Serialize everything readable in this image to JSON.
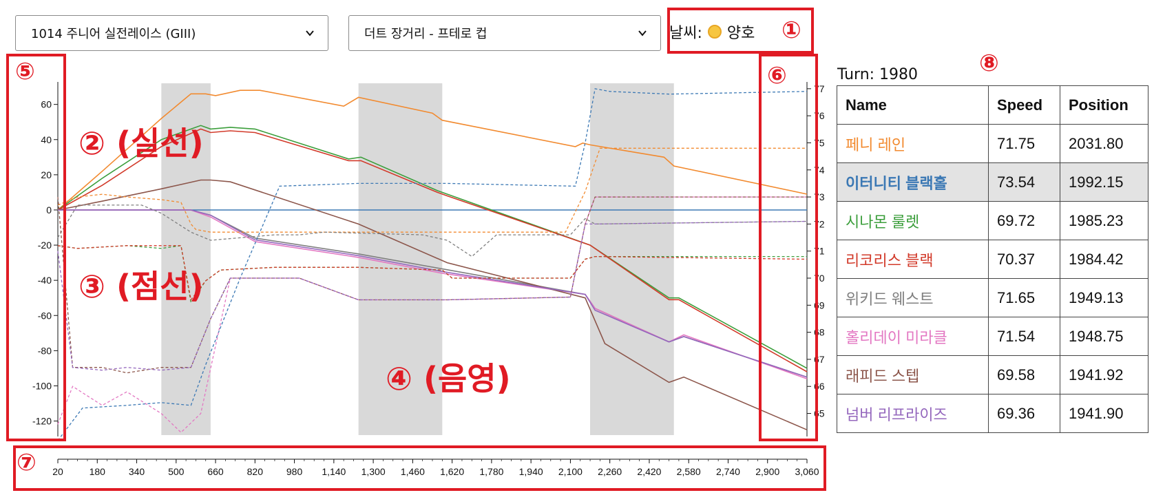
{
  "controls": {
    "race_select": "1014 주니어 실전레이스 (GIII)",
    "course_select": "더트 장거리 - 프테로 컵",
    "weather_label": "날씨:",
    "weather_value": "양호"
  },
  "annotations": {
    "n1": "①",
    "n2": "② (실선)",
    "n3": "③ (점선)",
    "n4": "④ (음영)",
    "n5": "⑤",
    "n6": "⑥",
    "n7": "⑦",
    "n8": "⑧"
  },
  "turn_label": "Turn: 1980",
  "table": {
    "headers": [
      "Name",
      "Speed",
      "Position"
    ],
    "rows": [
      {
        "name": "페니 레인",
        "speed": "71.75",
        "position": "2031.80",
        "color": "#f28a2f"
      },
      {
        "name": "이터니티 블랙홀",
        "speed": "73.54",
        "position": "1992.15",
        "color": "#3b78b4"
      },
      {
        "name": "시나몬 룰렛",
        "speed": "69.72",
        "position": "1985.23",
        "color": "#3b9e3b"
      },
      {
        "name": "리코리스 블랙",
        "speed": "70.37",
        "position": "1984.42",
        "color": "#d23a2a"
      },
      {
        "name": "위키드 웨스트",
        "speed": "71.65",
        "position": "1949.13",
        "color": "#7f7f7f"
      },
      {
        "name": "홀리데이 미라클",
        "speed": "71.54",
        "position": "1948.75",
        "color": "#e377c2"
      },
      {
        "name": "래피드 스텝",
        "speed": "69.58",
        "position": "1941.92",
        "color": "#8c564b"
      },
      {
        "name": "넘버 리프라이즈",
        "speed": "69.36",
        "position": "1941.90",
        "color": "#9467bd"
      }
    ]
  },
  "chart_data": {
    "type": "line",
    "x_ticks": [
      "20",
      "180",
      "340",
      "500",
      "660",
      "820",
      "980",
      "1,140",
      "1,300",
      "1,460",
      "1,620",
      "1,780",
      "1,940",
      "2,100",
      "2,260",
      "2,420",
      "2,580",
      "2,740",
      "2,900",
      "3,060"
    ],
    "xlim": [
      20,
      3060
    ],
    "ylim_left": [
      -128,
      72
    ],
    "y_ticks_left": [
      60,
      40,
      20,
      0,
      -20,
      -40,
      -60,
      -80,
      -100,
      -120
    ],
    "ylim_right": [
      64.2,
      77.2
    ],
    "y_ticks_right": [
      77,
      76,
      75,
      74,
      73,
      72,
      71,
      70,
      69,
      68,
      67,
      66,
      65
    ],
    "shaded_ranges": [
      [
        440,
        640
      ],
      [
        1240,
        1580
      ],
      [
        2180,
        2520
      ]
    ],
    "grid": false,
    "series_solid": [
      {
        "name": "페니 레인",
        "color": "#f28a2f",
        "x": [
          20,
          200,
          440,
          560,
          620,
          660,
          760,
          840,
          1180,
          1240,
          1540,
          1580,
          2120,
          2150,
          2180,
          2480,
          2520,
          3060
        ],
        "y": [
          0,
          22,
          52,
          66,
          66,
          65,
          68,
          68,
          59,
          64,
          55,
          51,
          36,
          38,
          37,
          30,
          25,
          9
        ]
      },
      {
        "name": "이터니티 블랙홀",
        "color": "#3b78b4",
        "x": [
          20,
          3060
        ],
        "y": [
          0,
          0
        ]
      },
      {
        "name": "시나몬 룰렛",
        "color": "#3b9e3b",
        "x": [
          20,
          200,
          440,
          600,
          640,
          720,
          820,
          1200,
          1250,
          1560,
          1600,
          2180,
          2500,
          2540,
          3060
        ],
        "y": [
          0,
          18,
          40,
          48,
          46,
          47,
          46,
          29,
          30,
          11,
          9,
          -20,
          -50,
          -50,
          -90
        ]
      },
      {
        "name": "리코리스 블랙",
        "color": "#d23a2a",
        "x": [
          20,
          200,
          440,
          600,
          640,
          720,
          820,
          1200,
          1250,
          1560,
          1600,
          2180,
          2500,
          2540,
          3060
        ],
        "y": [
          0,
          14,
          36,
          46,
          44,
          45,
          44,
          28,
          28,
          10,
          8,
          -20,
          -51,
          -51,
          -92
        ]
      },
      {
        "name": "위키드 웨스트",
        "color": "#7f7f7f",
        "x": [
          20,
          440,
          560,
          640,
          820,
          1240,
          1600,
          2160,
          2200,
          2500,
          2560,
          3060
        ],
        "y": [
          0,
          0,
          0,
          -3,
          -16,
          -25,
          -34,
          -48,
          -56,
          -75,
          -72,
          -95
        ]
      },
      {
        "name": "홀리데이 미라클",
        "color": "#e377c2",
        "x": [
          20,
          440,
          560,
          640,
          820,
          1240,
          1580,
          2160,
          2200,
          2500,
          2560,
          3060
        ],
        "y": [
          0,
          0,
          0,
          -4,
          -18,
          -27,
          -36,
          -48,
          -56,
          -75,
          -71,
          -96
        ]
      },
      {
        "name": "래피드 스텝",
        "color": "#8c564b",
        "x": [
          20,
          200,
          440,
          600,
          640,
          720,
          1240,
          1600,
          2160,
          2240,
          2500,
          2560,
          3060
        ],
        "y": [
          0,
          5,
          12,
          17,
          17,
          16,
          -8,
          -30,
          -50,
          -76,
          -98,
          -95,
          -125
        ]
      },
      {
        "name": "넘버 리프라이즈",
        "color": "#9467bd",
        "x": [
          20,
          440,
          560,
          640,
          820,
          1240,
          1580,
          2160,
          2200,
          2500,
          2560,
          3060
        ],
        "y": [
          0,
          0,
          0,
          -3,
          -17,
          -26,
          -35,
          -48,
          -57,
          -75,
          -72,
          -95
        ]
      }
    ],
    "series_dotted": [
      {
        "name": "페니 레인",
        "color": "#f28a2f",
        "x": [
          20,
          100,
          200,
          300,
          440,
          520,
          560,
          580,
          640,
          900,
          1240,
          1600,
          2080,
          2160,
          2220,
          2500,
          3060
        ],
        "y": [
          72.7,
          73.0,
          73.1,
          73.0,
          72.9,
          72.8,
          72.0,
          71.8,
          71.7,
          71.7,
          71.7,
          71.7,
          71.7,
          73.2,
          74.8,
          74.8,
          74.8
        ]
      },
      {
        "name": "이터니티 블랙홀",
        "color": "#3b78b4",
        "x": [
          20,
          120,
          300,
          440,
          560,
          620,
          760,
          920,
          1240,
          1600,
          2120,
          2160,
          2200,
          2260,
          2500,
          3060
        ],
        "y": [
          64.0,
          65.2,
          65.3,
          65.4,
          65.3,
          66.8,
          70.0,
          73.4,
          73.5,
          73.5,
          73.4,
          75.0,
          77.0,
          76.9,
          76.8,
          76.9
        ]
      },
      {
        "name": "시나몬 룰렛",
        "color": "#3b9e3b",
        "x": [
          20,
          100,
          300,
          440,
          520,
          560,
          620,
          680,
          900,
          1240,
          1580,
          1620,
          2100,
          2160,
          2200,
          3060
        ],
        "y": [
          71.2,
          71.1,
          71.2,
          71.1,
          71.2,
          69.1,
          69.9,
          70.3,
          70.4,
          70.4,
          70.3,
          70.0,
          70.0,
          70.7,
          70.8,
          70.8
        ]
      },
      {
        "name": "리코리스 블랙",
        "color": "#d23a2a",
        "x": [
          20,
          100,
          300,
          440,
          520,
          560,
          620,
          680,
          900,
          1240,
          1580,
          1620,
          2100,
          2160,
          2200,
          3060
        ],
        "y": [
          71.2,
          71.1,
          71.2,
          71.2,
          71.2,
          69.2,
          69.9,
          70.3,
          70.4,
          70.4,
          70.3,
          70.0,
          70.0,
          70.7,
          70.8,
          70.7
        ]
      },
      {
        "name": "위키드 웨스트",
        "color": "#7f7f7f",
        "x": [
          20,
          100,
          200,
          300,
          360,
          440,
          560,
          640,
          900,
          1000,
          1100,
          1500,
          1600,
          1700,
          1800,
          2100,
          2160,
          2200,
          3060
        ],
        "y": [
          71.5,
          72.7,
          72.7,
          72.7,
          72.7,
          72.4,
          71.7,
          71.4,
          71.6,
          71.6,
          71.7,
          71.6,
          71.4,
          70.8,
          71.6,
          71.6,
          72.2,
          72.0,
          72.1
        ]
      },
      {
        "name": "홀리데이 미라클",
        "color": "#e377c2",
        "x": [
          20,
          80,
          200,
          300,
          440,
          520,
          600,
          720,
          1000,
          1240,
          1600,
          2100,
          2160,
          2200,
          3060
        ],
        "y": [
          64.6,
          66.0,
          65.3,
          65.8,
          65.0,
          64.3,
          65.0,
          70.0,
          70.0,
          69.2,
          69.2,
          69.3,
          72.0,
          73.0,
          73.0
        ]
      },
      {
        "name": "래피드 스텝",
        "color": "#8c564b",
        "x": [
          20,
          80,
          200,
          300,
          440,
          560,
          640,
          720,
          1000,
          1240,
          1600,
          2100,
          2160,
          2200,
          3060
        ],
        "y": [
          73.0,
          66.7,
          66.7,
          66.5,
          66.7,
          66.7,
          68.5,
          70.0,
          70.0,
          69.2,
          69.2,
          69.3,
          72.0,
          73.0,
          73.0
        ]
      },
      {
        "name": "넘버 리프라이즈",
        "color": "#9467bd",
        "x": [
          20,
          80,
          200,
          300,
          440,
          560,
          640,
          720,
          1000,
          1240,
          1600,
          2100,
          2160,
          2200,
          3060
        ],
        "y": [
          71.0,
          66.7,
          66.6,
          66.7,
          66.6,
          66.7,
          68.5,
          70.0,
          70.0,
          69.2,
          69.2,
          69.3,
          72.0,
          72.0,
          72.1
        ]
      }
    ]
  }
}
